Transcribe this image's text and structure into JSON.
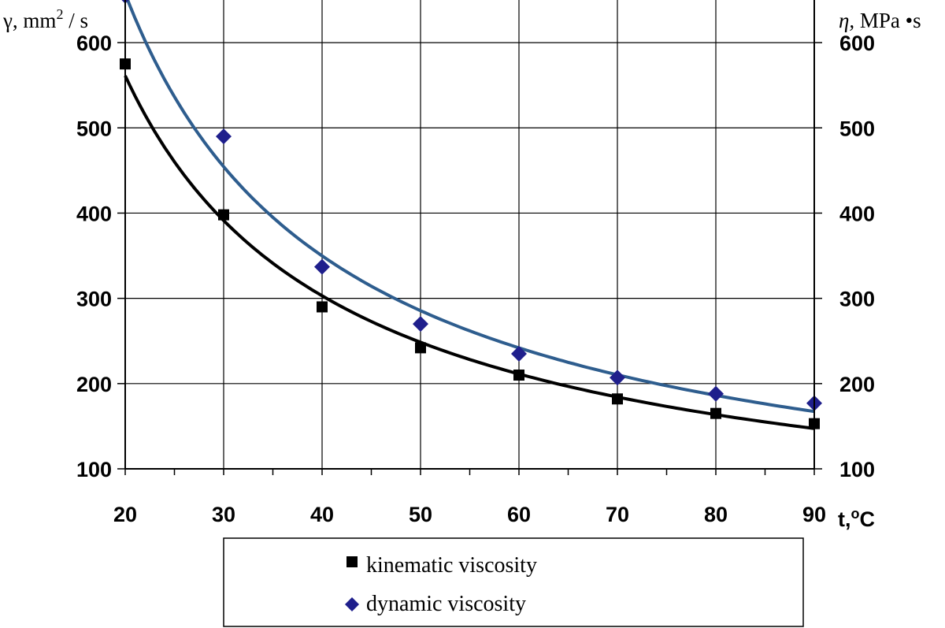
{
  "chart_data": {
    "type": "scatter",
    "x": [
      20,
      30,
      40,
      50,
      60,
      70,
      80,
      90
    ],
    "xlim": [
      20,
      90
    ],
    "ylim": [
      100,
      650
    ],
    "ylim_right": [
      100,
      650
    ],
    "x_ticks": [
      "20",
      "30",
      "40",
      "50",
      "60",
      "70",
      "80",
      "90"
    ],
    "y_ticks": [
      "100",
      "200",
      "300",
      "400",
      "500",
      "600"
    ],
    "y_ticks_right": [
      "100",
      "200",
      "300",
      "400",
      "500",
      "600"
    ],
    "xlabel": "t,",
    "xlabel_unit": "C",
    "xlabel_degree": "o",
    "ylabel_left": "γ, mm",
    "ylabel_left_sup": "2",
    "ylabel_left_tail": " / s",
    "ylabel_right_symbol": "η,",
    "ylabel_right_unit": " MPa •s",
    "grid": true,
    "legend_position": "bottom",
    "series": [
      {
        "name": "kinematic viscosity",
        "marker": "square",
        "color": "#000000",
        "trend_color": "#000000",
        "values": [
          575,
          398,
          290,
          242,
          210,
          182,
          165,
          153
        ]
      },
      {
        "name": "dynamic viscosity",
        "marker": "diamond",
        "color": "#1f1f8c",
        "trend_color": "#2e5d8e",
        "values": [
          655,
          490,
          337,
          270,
          235,
          207,
          188,
          177
        ]
      }
    ]
  }
}
